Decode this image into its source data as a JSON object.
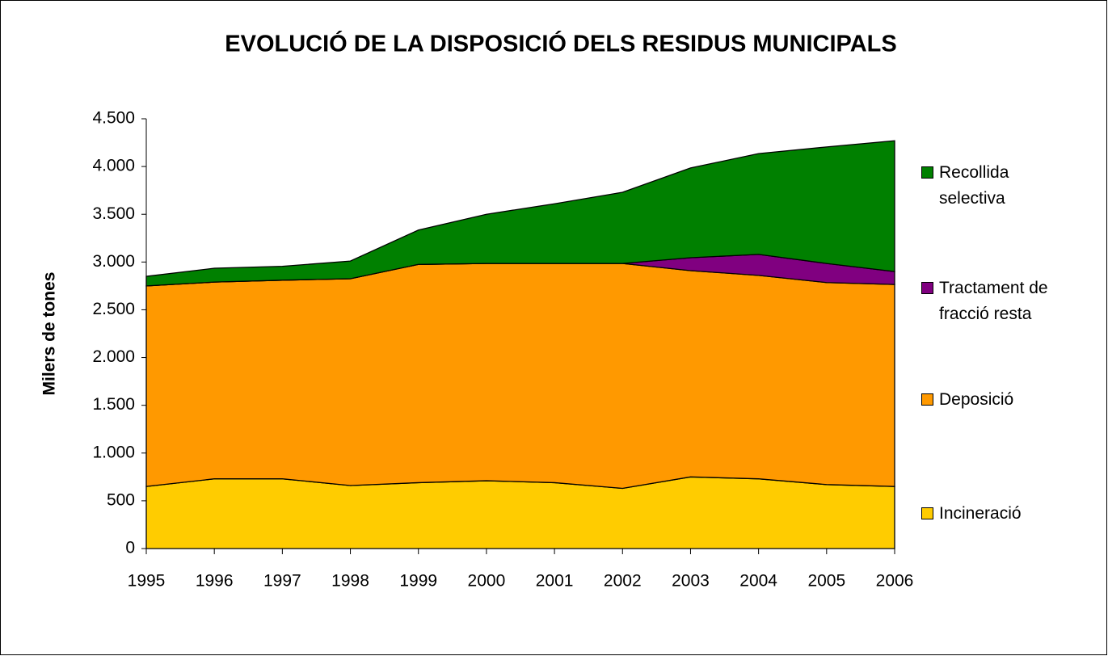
{
  "chart_data": {
    "type": "stacked_area",
    "title": "EVOLUCIÓ DE LA DISPOSICIÓ DELS RESIDUS MUNICIPALS",
    "y_label": "Milers de tones",
    "categories": [
      "1995",
      "1996",
      "1997",
      "1998",
      "1999",
      "2000",
      "2001",
      "2002",
      "2003",
      "2004",
      "2005",
      "2006"
    ],
    "series": [
      {
        "name": "Incineració",
        "color": "#ffcc00",
        "values": [
          650,
          730,
          730,
          660,
          690,
          710,
          690,
          630,
          750,
          730,
          670,
          650
        ]
      },
      {
        "name": "Deposició",
        "color": "#ff9900",
        "values": [
          2100,
          2060,
          2080,
          2165,
          2285,
          2275,
          2295,
          2355,
          2160,
          2130,
          2115,
          2115
        ]
      },
      {
        "name": "Tractament de fracció resta",
        "color": "#800080",
        "values": [
          0,
          0,
          0,
          0,
          0,
          0,
          0,
          0,
          135,
          220,
          200,
          135
        ]
      },
      {
        "name": "Recollida selectiva",
        "color": "#008000",
        "values": [
          100,
          145,
          145,
          185,
          360,
          515,
          625,
          745,
          940,
          1055,
          1220,
          1370
        ]
      }
    ],
    "ylim": [
      0,
      4500
    ],
    "yticks": [
      0,
      500,
      {
        "value": 1000,
        "label": "1.000"
      },
      {
        "value": 1500,
        "label": "1.500"
      },
      {
        "value": 2000,
        "label": "2.000"
      },
      {
        "value": 2500,
        "label": "2.500"
      },
      {
        "value": 3000,
        "label": "3.000"
      },
      {
        "value": 3500,
        "label": "3.500"
      },
      {
        "value": 4000,
        "label": "4.000"
      },
      {
        "value": 4500,
        "label": "4.500"
      }
    ],
    "legend": "right"
  }
}
